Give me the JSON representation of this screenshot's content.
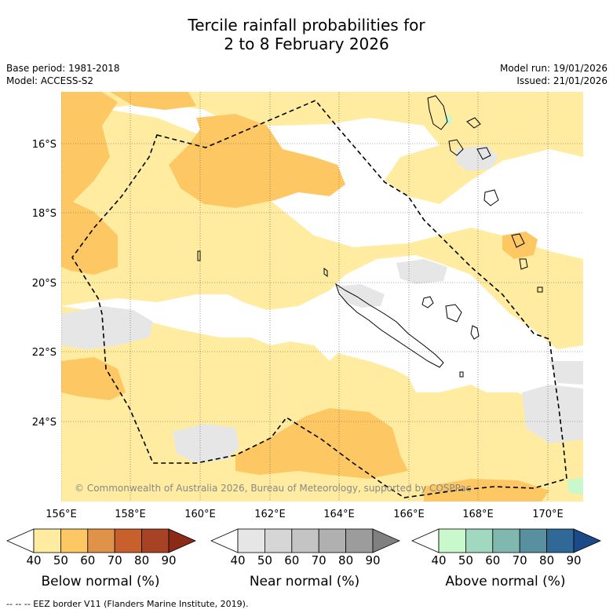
{
  "title": {
    "line1": "Tercile rainfall probabilities for",
    "line2": "2 to 8 February 2026"
  },
  "meta": {
    "base_period": "Base period: 1981-2018",
    "model": "Model: ACCESS-S2",
    "model_run": "Model run: 19/01/2026",
    "issued": "Issued: 21/01/2026"
  },
  "map": {
    "lat_labels": [
      "16°S",
      "18°S",
      "20°S",
      "22°S",
      "24°S"
    ],
    "lon_labels": [
      "156°E",
      "158°E",
      "160°E",
      "162°E",
      "164°E",
      "166°E",
      "168°E",
      "170°E"
    ],
    "copyright": "© Commonwealth of Australia 2026, Bureau of Meteorology, supported by COSPPac",
    "colors": {
      "below_50": "#ffeca0",
      "below_60": "#fdc863",
      "near_50": "#e6e6e6",
      "above_50": "#c8f8cc",
      "eez_line": "#000000"
    }
  },
  "colorbars": [
    {
      "label": "Below normal (%)",
      "ticks": [
        "40",
        "50",
        "60",
        "70",
        "80",
        "90"
      ],
      "colors": [
        "#ffffff",
        "#ffeca0",
        "#fdc863",
        "#e09248",
        "#c8602e",
        "#a84224",
        "#8c2a18"
      ]
    },
    {
      "label": "Near normal (%)",
      "ticks": [
        "40",
        "50",
        "60",
        "70",
        "80",
        "90"
      ],
      "colors": [
        "#ffffff",
        "#e6e6e6",
        "#d6d6d6",
        "#c4c4c4",
        "#b0b0b0",
        "#9c9c9c",
        "#808080"
      ]
    },
    {
      "label": "Above normal (%)",
      "ticks": [
        "40",
        "50",
        "60",
        "70",
        "80",
        "90"
      ],
      "colors": [
        "#ffffff",
        "#c8f8cc",
        "#a0d8c0",
        "#80b8b0",
        "#5890a0",
        "#306898",
        "#1a4a88"
      ]
    }
  ],
  "footer": "--  --  -- EEZ border V11 (Flanders Marine Institute, 2019)."
}
